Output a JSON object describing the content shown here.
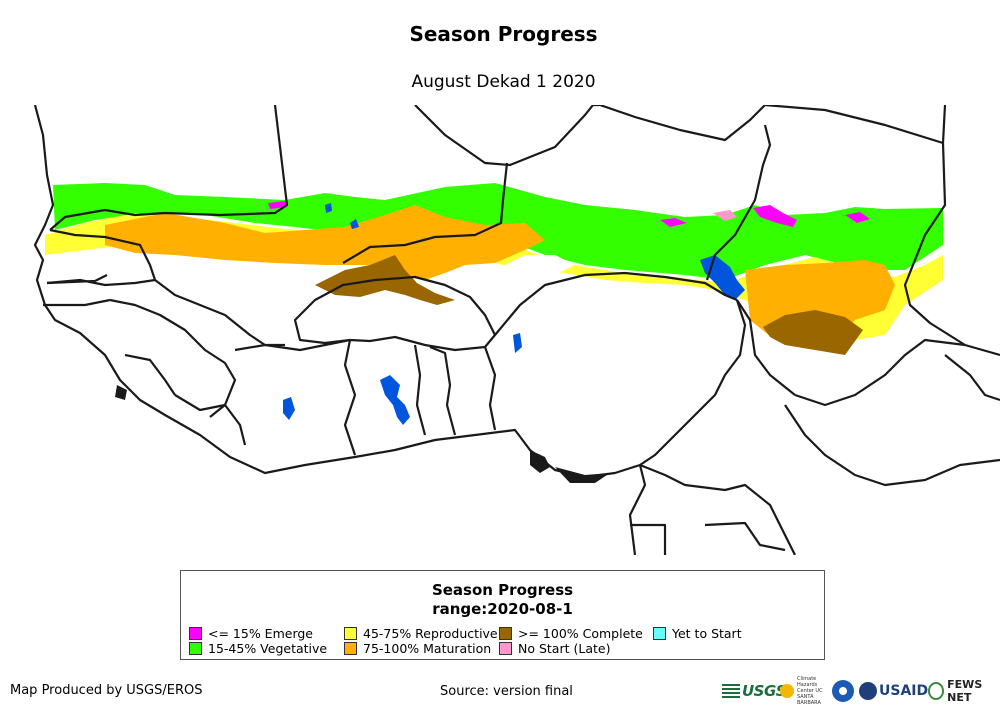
{
  "title": "Season Progress",
  "subtitle": "August Dekad 1 2020",
  "legend": {
    "title": "Season Progress",
    "subtitle": "range:2020-08-1",
    "items": [
      {
        "label": "<= 15% Emerge",
        "color": "#ff00ff"
      },
      {
        "label": "15-45% Vegetative",
        "color": "#33ff00"
      },
      {
        "label": "45-75% Reproductive",
        "color": "#ffff33"
      },
      {
        "label": "75-100% Maturation",
        "color": "#ffb000"
      },
      {
        "label": ">= 100% Complete",
        "color": "#996600"
      },
      {
        "label": "No Start (Late)",
        "color": "#ff99cc"
      },
      {
        "label": "Yet to Start",
        "color": "#66ffff"
      }
    ]
  },
  "footer": {
    "credit": "Map Produced by USGS/EROS",
    "source": "Source: version final"
  },
  "logos": {
    "usgs": "USGS",
    "chc": "Climate Hazards Center UC SANTA BARBARA",
    "usaid": "USAID",
    "fews": "FEWS NET"
  },
  "colors": {
    "water": "#0055dd",
    "border": "#1a1a1a"
  }
}
